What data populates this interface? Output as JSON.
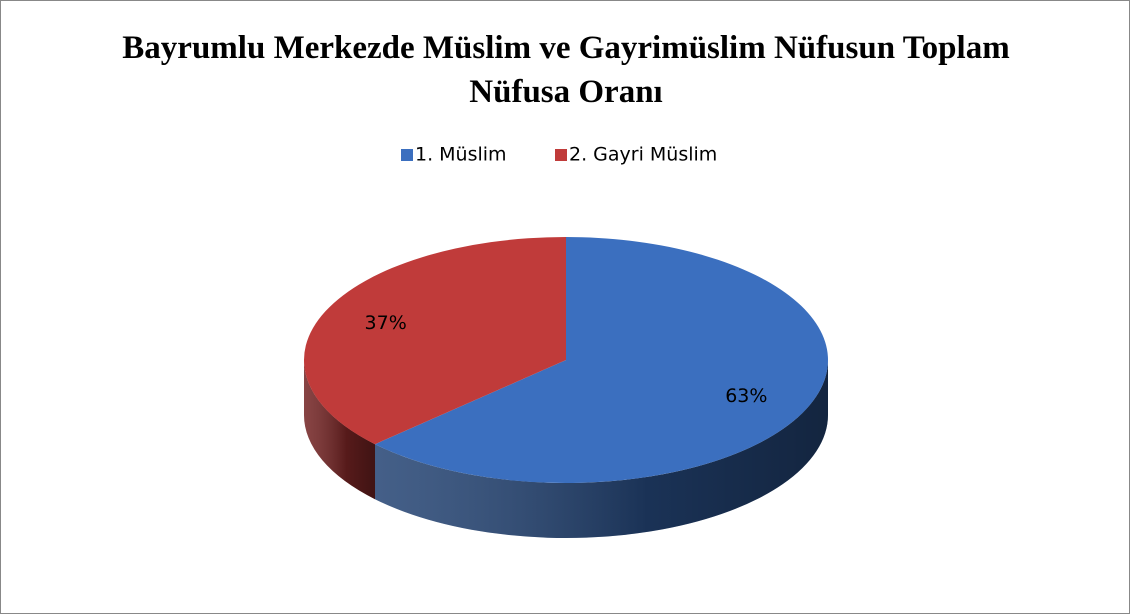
{
  "chart_data": {
    "type": "pie",
    "title": "Bayrumlu Merkezde Müslim ve Gayrimüslim Nüfusun Toplam Nüfusa Oranı",
    "categories": [
      "1. Müslim",
      "2. Gayri Müslim"
    ],
    "values": [
      63,
      37
    ],
    "value_labels": [
      "63%",
      "37%"
    ],
    "colors": [
      "#3b6fbf",
      "#c03b3a"
    ],
    "legend": "top"
  }
}
